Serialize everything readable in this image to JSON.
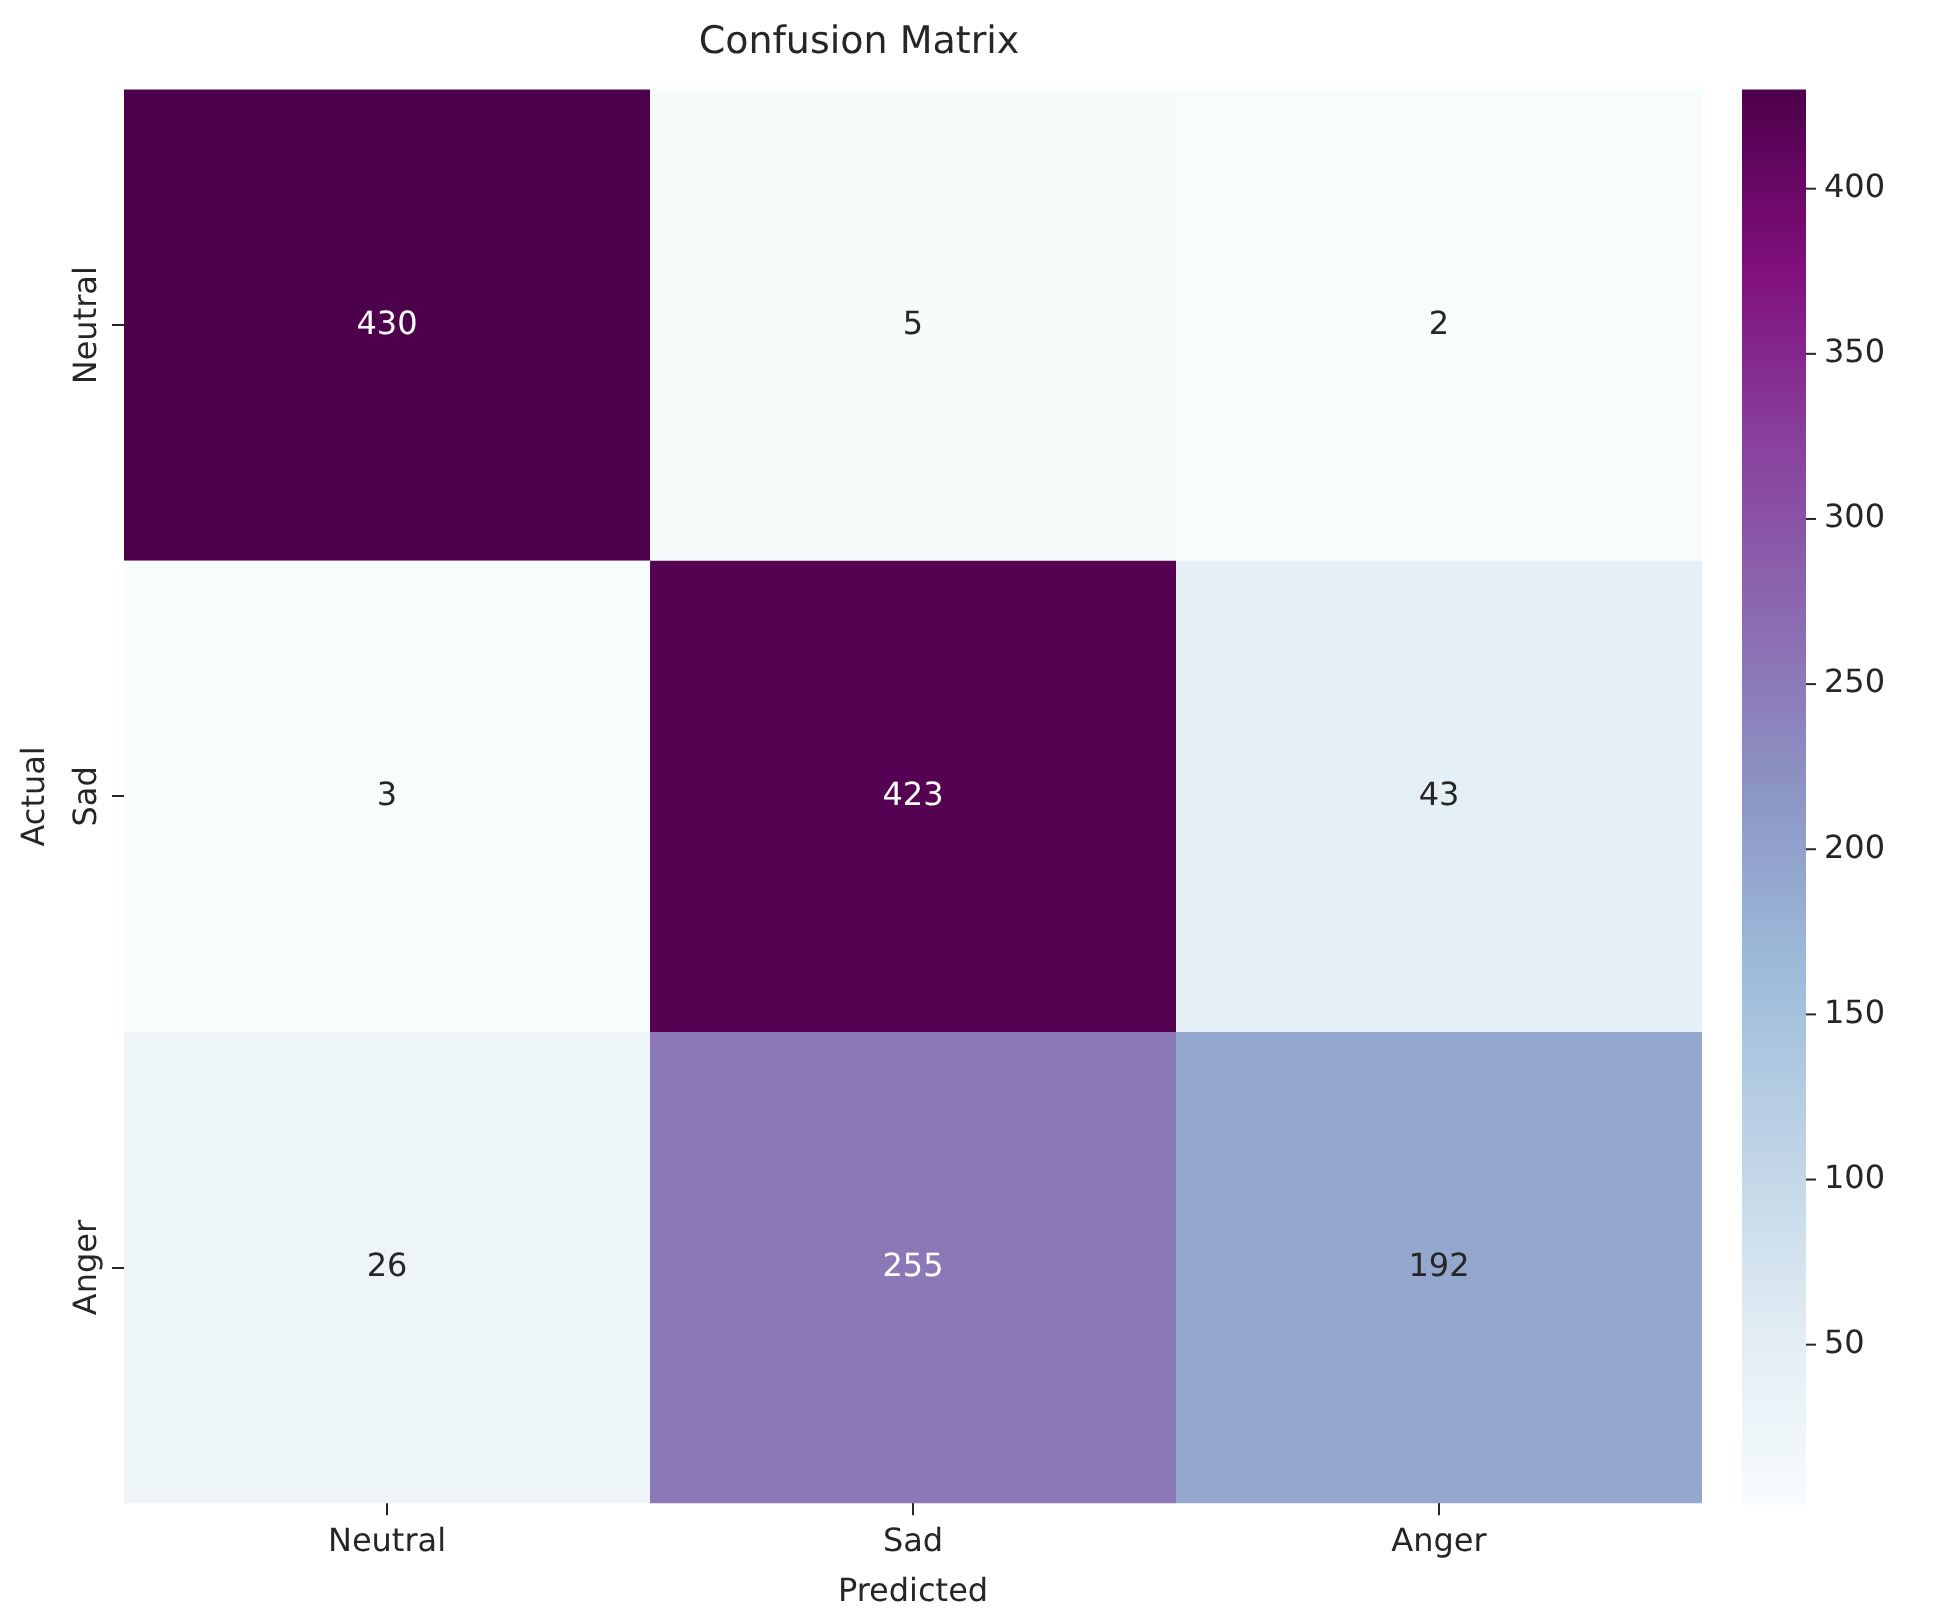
{
  "chart_data": {
    "type": "heatmap",
    "title": "Confusion Matrix",
    "xlabel": "Predicted",
    "ylabel": "Actual",
    "categories": [
      "Neutral",
      "Sad",
      "Anger"
    ],
    "y_categories": [
      "Neutral",
      "Sad",
      "Anger"
    ],
    "cells": [
      [
        430,
        5,
        2
      ],
      [
        3,
        423,
        43
      ],
      [
        26,
        255,
        192
      ]
    ],
    "clim": [
      2,
      430
    ],
    "cticks": [
      50,
      100,
      150,
      200,
      250,
      300,
      350,
      400
    ],
    "data_labels": true
  }
}
